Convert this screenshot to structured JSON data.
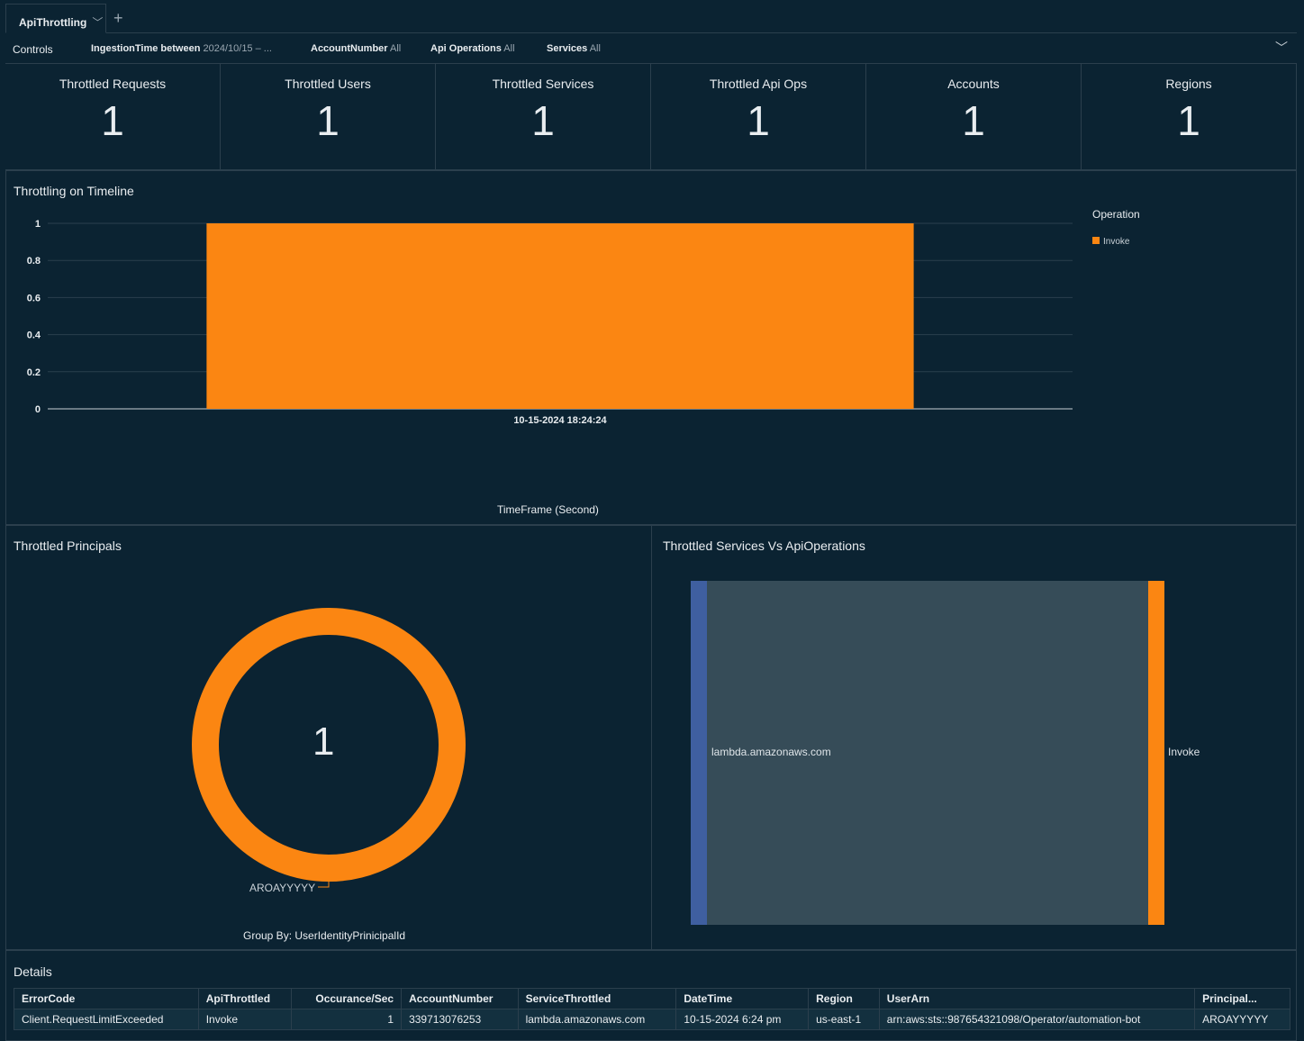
{
  "tab": {
    "name": "ApiThrottling"
  },
  "controls": {
    "label": "Controls",
    "filters": [
      {
        "name": "IngestionTime between",
        "value": "2024/10/15 – ..."
      },
      {
        "name": "AccountNumber",
        "value": "All"
      },
      {
        "name": "Api Operations",
        "value": "All"
      },
      {
        "name": "Services",
        "value": "All"
      }
    ]
  },
  "kpis": [
    {
      "title": "Throttled Requests",
      "value": "1"
    },
    {
      "title": "Throttled  Users",
      "value": "1"
    },
    {
      "title": "Throttled Services",
      "value": "1"
    },
    {
      "title": "Throttled  Api Ops",
      "value": "1"
    },
    {
      "title": "Accounts",
      "value": "1"
    },
    {
      "title": "Regions",
      "value": "1"
    }
  ],
  "chart_data": [
    {
      "type": "bar",
      "title": "Throttling on Timeline",
      "categories": [
        "10-15-2024 18:24:24"
      ],
      "series": [
        {
          "name": "Invoke",
          "values": [
            1
          ]
        }
      ],
      "xlabel": "TimeFrame (Second)",
      "ylabel": "",
      "ylim": [
        0,
        1
      ],
      "yticks": [
        "0",
        "0.2",
        "0.4",
        "0.6",
        "0.8",
        "1"
      ],
      "legend": {
        "title": "Operation",
        "position": "right"
      },
      "color": "#fb8612"
    },
    {
      "type": "pie",
      "title": "Throttled Principals",
      "center_label": "1",
      "slices": [
        {
          "label": "AROAYYYYY",
          "value": 1
        }
      ],
      "footer": "Group By: UserIdentityPrinicipalId"
    },
    {
      "type": "sankey",
      "title": "Throttled Services Vs ApiOperations",
      "source": "lambda.amazonaws.com",
      "target": "Invoke",
      "value": 1
    }
  ],
  "details": {
    "title": "Details",
    "columns": [
      "ErrorCode",
      "ApiThrottled",
      "Occurance/Sec",
      "AccountNumber",
      "ServiceThrottled",
      "DateTime",
      "Region",
      "UserArn",
      "Principal..."
    ],
    "rows": [
      [
        "Client.RequestLimitExceeded",
        "Invoke",
        "1",
        "339713076253",
        "lambda.amazonaws.com",
        "10-15-2024 6:24 pm",
        "us-east-1",
        "arn:aws:sts::987654321098/Operator/automation-bot",
        "AROAYYYYY"
      ]
    ]
  }
}
